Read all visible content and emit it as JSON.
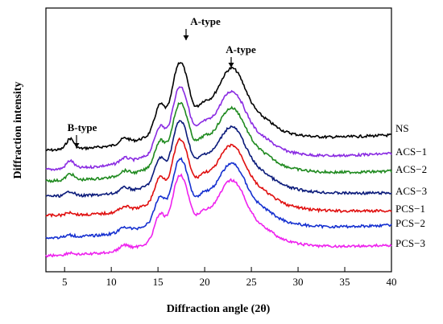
{
  "chart_data": {
    "type": "line",
    "title": "",
    "xlabel": "Diffraction angle (2θ)",
    "ylabel": "Diffraction intensity",
    "xlim": [
      3,
      40
    ],
    "xticks": [
      5,
      10,
      15,
      20,
      25,
      30,
      35,
      40
    ],
    "y_ticks_shown": false,
    "grid": false,
    "legend": "labels at right end of each curve",
    "peaks": [
      {
        "x": 5.6,
        "h": 12,
        "w": 0.4
      },
      {
        "x": 11.4,
        "h": 6,
        "w": 0.5
      },
      {
        "x": 15.2,
        "h": 30,
        "w": 0.55
      },
      {
        "x": 17.1,
        "h": 58,
        "w": 0.65
      },
      {
        "x": 18.0,
        "h": 28,
        "w": 0.55
      },
      {
        "x": 19.8,
        "h": 10,
        "w": 0.6
      },
      {
        "x": 23.0,
        "h": 52,
        "w": 1.4
      },
      {
        "x": 26.5,
        "h": 6,
        "w": 1.0
      }
    ],
    "series": [
      {
        "name": "NS",
        "color": "#000000",
        "offset": 0,
        "peak_scale": 1.1,
        "b_type": 1
      },
      {
        "name": "ACS−1",
        "color": "#8a2be2",
        "offset": 1,
        "peak_scale": 1.0,
        "b_type": 0.8
      },
      {
        "name": "ACS−2",
        "color": "#1f8a1f",
        "offset": 2,
        "peak_scale": 0.95,
        "b_type": 0.7
      },
      {
        "name": "ACS−3",
        "color": "#0a1a7a",
        "offset": 3,
        "peak_scale": 0.95,
        "b_type": 0.5
      },
      {
        "name": "PCS−1",
        "color": "#e01010",
        "offset": 4,
        "peak_scale": 0.95,
        "b_type": 0.3
      },
      {
        "name": "PCS−2",
        "color": "#1530d0",
        "offset": 5,
        "peak_scale": 0.95,
        "b_type": 0.2
      },
      {
        "name": "PCS−3",
        "color": "#ee22ee",
        "offset": 6,
        "peak_scale": 1.0,
        "b_type": 0.2
      }
    ],
    "annotations": [
      {
        "text": "B-type",
        "x": 5.6
      },
      {
        "text": "A-type",
        "x": 17.6
      },
      {
        "text": "A-type",
        "x": 23.0
      }
    ]
  }
}
